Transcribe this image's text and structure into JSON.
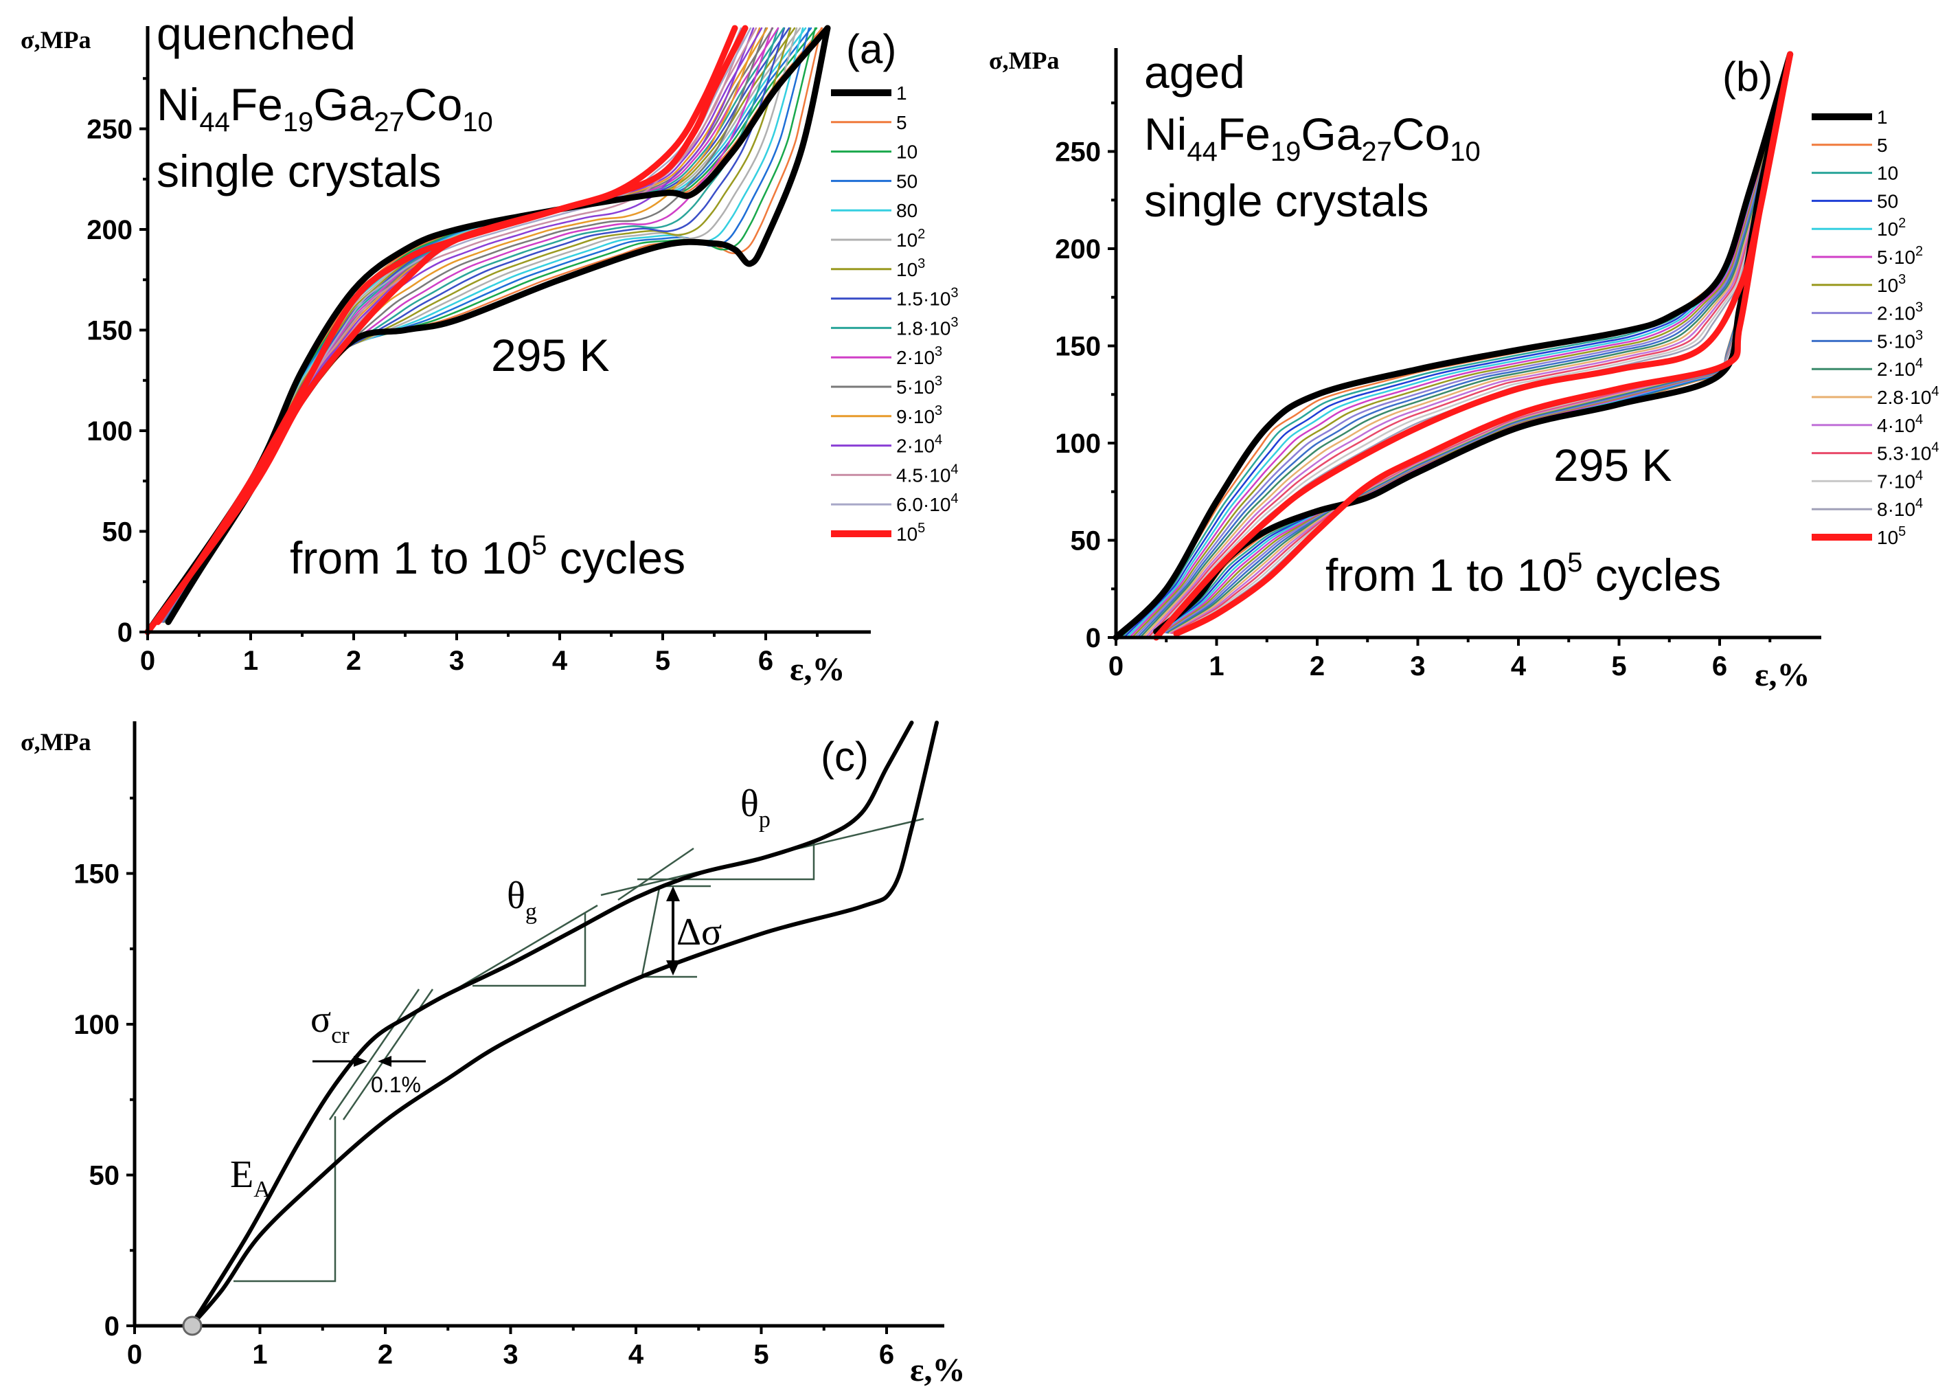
{
  "chart_data": [
    {
      "id": "a",
      "type": "line",
      "panel_label": "(a)",
      "title_lines": [
        "quenched",
        "Ni44Fe19Ga27Co10",
        "single crystals"
      ],
      "composition": {
        "parts": [
          [
            "Ni",
            "44"
          ],
          [
            "Fe",
            "19"
          ],
          [
            "Ga",
            "27"
          ],
          [
            "Co",
            "10"
          ]
        ]
      },
      "temperature": "295 K",
      "note": {
        "prefix": "from 1 to 10",
        "sup": "5",
        "suffix": " cycles"
      },
      "xlabel": "ε,%",
      "ylabel": "σ,MPa",
      "xlim": [
        0,
        7
      ],
      "ylim": [
        0,
        300
      ],
      "xticks": [
        0,
        1,
        2,
        3,
        4,
        5,
        6
      ],
      "yticks": [
        0,
        50,
        100,
        150,
        200,
        250
      ],
      "legend_position": "right",
      "legend": [
        {
          "label": "1",
          "base": "1",
          "sup": "",
          "color": "#000000"
        },
        {
          "label": "5",
          "base": "5",
          "sup": "",
          "color": "#f07a3c"
        },
        {
          "label": "10",
          "base": "10",
          "sup": "",
          "color": "#1aa84c"
        },
        {
          "label": "50",
          "base": "50",
          "sup": "",
          "color": "#1f6fd6"
        },
        {
          "label": "80",
          "base": "80",
          "sup": "",
          "color": "#35cfe0"
        },
        {
          "label": "10^2",
          "base": "10",
          "sup": "2",
          "color": "#b0b0b0"
        },
        {
          "label": "10^3",
          "base": "10",
          "sup": "3",
          "color": "#9a9a20"
        },
        {
          "label": "1.5·10^3",
          "base": "1.5·10",
          "sup": "3",
          "color": "#3b4fc8"
        },
        {
          "label": "1.8·10^3",
          "base": "1.8·10",
          "sup": "3",
          "color": "#2aa59a"
        },
        {
          "label": "2·10^3",
          "base": "2·10",
          "sup": "3",
          "color": "#d03fc7"
        },
        {
          "label": "5·10^3",
          "base": "5·10",
          "sup": "3",
          "color": "#7a7a7a"
        },
        {
          "label": "9·10^3",
          "base": "9·10",
          "sup": "3",
          "color": "#e89a2a"
        },
        {
          "label": "2·10^4",
          "base": "2·10",
          "sup": "4",
          "color": "#8a3fd6"
        },
        {
          "label": "4.5·10^4",
          "base": "4.5·10",
          "sup": "4",
          "color": "#c98fa6"
        },
        {
          "label": "6.0·10^4",
          "base": "6.0·10",
          "sup": "4",
          "color": "#a8a8c8"
        },
        {
          "label": "10^5",
          "base": "10",
          "sup": "5",
          "color": "#ff1a1a"
        }
      ],
      "series": [
        {
          "name": "1",
          "loading": [
            [
              0,
              0
            ],
            [
              1,
              75
            ],
            [
              1.5,
              130
            ],
            [
              2,
              170
            ],
            [
              2.5,
              190
            ],
            [
              3,
              200
            ],
            [
              4,
              210
            ],
            [
              5,
              218
            ],
            [
              5.3,
              218
            ],
            [
              5.7,
              240
            ],
            [
              6.1,
              270
            ],
            [
              6.6,
              300
            ]
          ],
          "unloading": [
            [
              6.6,
              300
            ],
            [
              6.35,
              240
            ],
            [
              6.0,
              195
            ],
            [
              5.85,
              183
            ],
            [
              5.7,
              190
            ],
            [
              5.5,
              193
            ],
            [
              5,
              192
            ],
            [
              4,
              175
            ],
            [
              3,
              155
            ],
            [
              2.5,
              150
            ],
            [
              2,
              145
            ],
            [
              1.5,
              115
            ],
            [
              1,
              70
            ],
            [
              0.5,
              30
            ],
            [
              0.2,
              5
            ]
          ]
        },
        {
          "name": "10^5",
          "loading": [
            [
              0,
              0
            ],
            [
              1,
              70
            ],
            [
              1.5,
              115
            ],
            [
              2,
              148
            ],
            [
              2.5,
              175
            ],
            [
              3,
              195
            ],
            [
              4,
              210
            ],
            [
              4.5,
              217
            ],
            [
              5,
              228
            ],
            [
              5.3,
              248
            ],
            [
              5.5,
              270
            ],
            [
              5.8,
              300
            ]
          ],
          "unloading": [
            [
              5.7,
              300
            ],
            [
              5.4,
              265
            ],
            [
              5.1,
              240
            ],
            [
              4.6,
              220
            ],
            [
              4,
              210
            ],
            [
              3,
              195
            ],
            [
              2.5,
              185
            ],
            [
              2,
              165
            ],
            [
              1.5,
              120
            ],
            [
              1,
              75
            ],
            [
              0.5,
              35
            ],
            [
              0.1,
              5
            ]
          ]
        }
      ]
    },
    {
      "id": "b",
      "type": "line",
      "panel_label": "(b)",
      "title_lines": [
        "aged",
        "Ni44Fe19Ga27Co10",
        "single crystals"
      ],
      "composition": {
        "parts": [
          [
            "Ni",
            "44"
          ],
          [
            "Fe",
            "19"
          ],
          [
            "Ga",
            "27"
          ],
          [
            "Co",
            "10"
          ]
        ]
      },
      "temperature": "295 K",
      "note": {
        "prefix": "from 1 to 10",
        "sup": "5",
        "suffix": " cycles"
      },
      "xlabel": "ε,%",
      "ylabel": "σ,MPa",
      "xlim": [
        0,
        7
      ],
      "ylim": [
        0,
        300
      ],
      "xticks": [
        0,
        1,
        2,
        3,
        4,
        5,
        6
      ],
      "yticks": [
        0,
        50,
        100,
        150,
        200,
        250
      ],
      "legend_position": "right",
      "legend": [
        {
          "label": "1",
          "base": "1",
          "sup": "",
          "color": "#000000"
        },
        {
          "label": "5",
          "base": "5",
          "sup": "",
          "color": "#f07a3c"
        },
        {
          "label": "10",
          "base": "10",
          "sup": "",
          "color": "#2aa59a"
        },
        {
          "label": "50",
          "base": "50",
          "sup": "",
          "color": "#1f3fd6"
        },
        {
          "label": "10^2",
          "base": "10",
          "sup": "2",
          "color": "#35cfe0"
        },
        {
          "label": "5·10^2",
          "base": "5·10",
          "sup": "2",
          "color": "#d03fc7"
        },
        {
          "label": "10^3",
          "base": "10",
          "sup": "3",
          "color": "#9a9a20"
        },
        {
          "label": "2·10^3",
          "base": "2·10",
          "sup": "3",
          "color": "#8a7fd6"
        },
        {
          "label": "5·10^3",
          "base": "5·10",
          "sup": "3",
          "color": "#3b6fc8"
        },
        {
          "label": "2·10^4",
          "base": "2·10",
          "sup": "4",
          "color": "#3a8a6a"
        },
        {
          "label": "2.8·10^4",
          "base": "2.8·10",
          "sup": "4",
          "color": "#e8b070"
        },
        {
          "label": "4·10^4",
          "base": "4·10",
          "sup": "4",
          "color": "#c070d8"
        },
        {
          "label": "5.3·10^4",
          "base": "5.3·10",
          "sup": "4",
          "color": "#e84a6a"
        },
        {
          "label": "7·10^4",
          "base": "7·10",
          "sup": "4",
          "color": "#c8c8c8"
        },
        {
          "label": "8·10^4",
          "base": "8·10",
          "sup": "4",
          "color": "#a0a0b8"
        },
        {
          "label": "10^5",
          "base": "10",
          "sup": "5",
          "color": "#ff1a1a"
        }
      ],
      "series": [
        {
          "name": "1",
          "loading": [
            [
              0,
              0
            ],
            [
              0.5,
              25
            ],
            [
              1,
              70
            ],
            [
              1.5,
              108
            ],
            [
              2,
              125
            ],
            [
              3,
              138
            ],
            [
              4,
              148
            ],
            [
              5,
              157
            ],
            [
              5.5,
              165
            ],
            [
              6,
              185
            ],
            [
              6.3,
              230
            ],
            [
              6.7,
              300
            ]
          ],
          "unloading": [
            [
              6.7,
              300
            ],
            [
              6.4,
              230
            ],
            [
              6.2,
              170
            ],
            [
              6.0,
              135
            ],
            [
              5,
              120
            ],
            [
              4,
              108
            ],
            [
              3,
              85
            ],
            [
              2.5,
              72
            ],
            [
              2,
              65
            ],
            [
              1.5,
              55
            ],
            [
              1.1,
              40
            ],
            [
              0.8,
              20
            ],
            [
              0.4,
              3
            ]
          ]
        },
        {
          "name": "10^5",
          "loading": [
            [
              0.4,
              0
            ],
            [
              1,
              35
            ],
            [
              1.5,
              60
            ],
            [
              2,
              80
            ],
            [
              3,
              108
            ],
            [
              4,
              128
            ],
            [
              5,
              138
            ],
            [
              5.8,
              148
            ],
            [
              6.2,
              180
            ],
            [
              6.4,
              220
            ],
            [
              6.7,
              300
            ]
          ],
          "unloading": [
            [
              6.7,
              300
            ],
            [
              6.4,
              220
            ],
            [
              6.2,
              160
            ],
            [
              6.05,
              140
            ],
            [
              5,
              128
            ],
            [
              4,
              115
            ],
            [
              3,
              92
            ],
            [
              2.5,
              78
            ],
            [
              2,
              55
            ],
            [
              1.5,
              30
            ],
            [
              1,
              12
            ],
            [
              0.6,
              2
            ]
          ]
        }
      ]
    },
    {
      "id": "c",
      "type": "line",
      "panel_label": "(c)",
      "xlabel": "ε,%",
      "ylabel": "σ,MPa",
      "xlim": [
        0,
        6.5
      ],
      "ylim": [
        0,
        200
      ],
      "xticks": [
        0,
        1,
        2,
        3,
        4,
        5,
        6
      ],
      "yticks": [
        0,
        50,
        100,
        150
      ],
      "annotations": {
        "sigma_cr": {
          "sym": "σ",
          "sub": "cr"
        },
        "offset": "0.1%",
        "theta_g": {
          "sym": "θ",
          "sub": "g"
        },
        "theta_p": {
          "sym": "θ",
          "sub": "p"
        },
        "delta_sigma": "Δσ",
        "E_A": {
          "sym": "E",
          "sub": "A"
        }
      },
      "series": [
        {
          "name": "loading",
          "points": [
            [
              0.45,
              0
            ],
            [
              0.9,
              30
            ],
            [
              1.3,
              60
            ],
            [
              1.6,
              80
            ],
            [
              1.9,
              95
            ],
            [
              2.2,
              103
            ],
            [
              2.5,
              110
            ],
            [
              3,
              120
            ],
            [
              3.5,
              131
            ],
            [
              4,
              142
            ],
            [
              4.5,
              150
            ],
            [
              5,
              155
            ],
            [
              5.5,
              162
            ],
            [
              5.8,
              170
            ],
            [
              6.0,
              185
            ],
            [
              6.2,
              200
            ]
          ]
        },
        {
          "name": "unloading",
          "points": [
            [
              6.4,
              200
            ],
            [
              6.2,
              165
            ],
            [
              6.05,
              145
            ],
            [
              5.8,
              139
            ],
            [
              5,
              130
            ],
            [
              4,
              115
            ],
            [
              3,
              95
            ],
            [
              2.5,
              82
            ],
            [
              2,
              68
            ],
            [
              1.5,
              50
            ],
            [
              1,
              30
            ],
            [
              0.7,
              12
            ],
            [
              0.45,
              0
            ]
          ]
        }
      ]
    }
  ]
}
